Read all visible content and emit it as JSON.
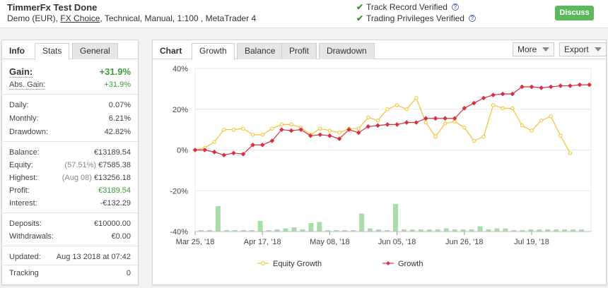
{
  "header": {
    "title": "TimmerFx Test Done",
    "sub_prefix": "Demo (EUR),",
    "broker": "FX Choice",
    "sub_suffix": ", Technical, Manual, 1:100 , MetaTrader 4",
    "verify_track": "Track Record Verified",
    "verify_trading": "Trading Privileges Verified",
    "discuss_label": "Discuss"
  },
  "info": {
    "heading": "Info",
    "tabs": [
      "Stats",
      "General"
    ],
    "gain_label": "Gain:",
    "gain_value": "+31.9%",
    "abs_gain_label": "Abs. Gain:",
    "abs_gain_value": "+31.9%",
    "daily_label": "Daily:",
    "daily_value": "0.07%",
    "monthly_label": "Monthly:",
    "monthly_value": "6.21%",
    "drawdown_label": "Drawdown:",
    "drawdown_value": "42.82%",
    "balance_label": "Balance:",
    "balance_value": "€13189.54",
    "equity_label": "Equity:",
    "equity_pct": "(57.51%)",
    "equity_value": "€7585.38",
    "highest_label": "Highest:",
    "highest_date": "(Aug 08)",
    "highest_value": "€13256.18",
    "profit_label": "Profit:",
    "profit_value": "€3189.54",
    "interest_label": "Interest:",
    "interest_value": "-€132.29",
    "deposits_label": "Deposits:",
    "deposits_value": "€10000.00",
    "withdrawals_label": "Withdrawals:",
    "withdrawals_value": "€0.00",
    "updated_label": "Updated:",
    "updated_value": "Aug 13 2018 at 07:42",
    "tracking_label": "Tracking",
    "tracking_value": "0"
  },
  "chart_panel": {
    "heading": "Chart",
    "tabs": [
      "Growth",
      "Balance",
      "Profit",
      "Drawdown"
    ],
    "more_label": "More",
    "export_label": "Export"
  },
  "colors": {
    "equity": "#f2c12e",
    "growth": "#d9303f",
    "bars": "#a8dca8",
    "accent_green": "#5cb85c"
  },
  "chart_data": {
    "type": "line",
    "ylim": [
      -40,
      40
    ],
    "yticks": [
      "40%",
      "20%",
      "0%",
      "-20%",
      "-40%"
    ],
    "ytick_values": [
      40,
      20,
      0,
      -20,
      -40
    ],
    "xticks": [
      "Mar 25, '18",
      "Apr 17, '18",
      "May 08, '18",
      "Jun 05, '18",
      "Jun 26, '18",
      "Jul 19, '18"
    ],
    "xtick_index": [
      0,
      7,
      14,
      21,
      28,
      35
    ],
    "series": [
      {
        "name": "Equity Growth",
        "values": [
          0,
          1,
          4,
          10,
          10,
          10.5,
          7.5,
          7.5,
          10.5,
          12.5,
          12.5,
          11,
          7.5,
          10.5,
          9.5,
          8.5,
          10.5,
          10.5,
          16,
          14.5,
          20,
          22,
          20,
          25.5,
          13.5,
          6.5,
          13,
          14,
          11,
          4.5,
          6.5,
          22,
          20.5,
          20.5,
          12,
          9.5,
          14.5,
          16.5,
          7,
          -1.5
        ]
      },
      {
        "name": "Growth",
        "values": [
          0,
          0,
          -1,
          -2.5,
          -1.5,
          -2,
          2.5,
          2.5,
          4.5,
          10,
          9.5,
          10,
          7,
          7.5,
          7,
          5.5,
          10,
          8.5,
          11.5,
          12,
          12.5,
          12.5,
          13.5,
          13.5,
          15.5,
          15.5,
          15.5,
          15.5,
          20.5,
          23,
          25.5,
          27,
          27.5,
          27.5,
          31,
          31,
          30.5,
          31,
          31.5,
          31.5,
          32,
          32
        ]
      }
    ],
    "volume_bars": [
      0,
      0,
      12,
      0,
      0,
      0,
      0,
      5,
      0,
      1,
      1.5,
      2,
      1,
      4,
      4.5,
      0,
      0,
      0,
      0,
      8.5,
      1.5,
      1,
      0,
      13,
      1,
      1,
      1,
      1,
      1,
      1.5,
      1,
      1,
      1,
      2.5,
      1,
      1.5,
      1.5,
      0,
      0,
      1,
      1,
      1,
      1,
      1,
      1,
      1
    ]
  }
}
